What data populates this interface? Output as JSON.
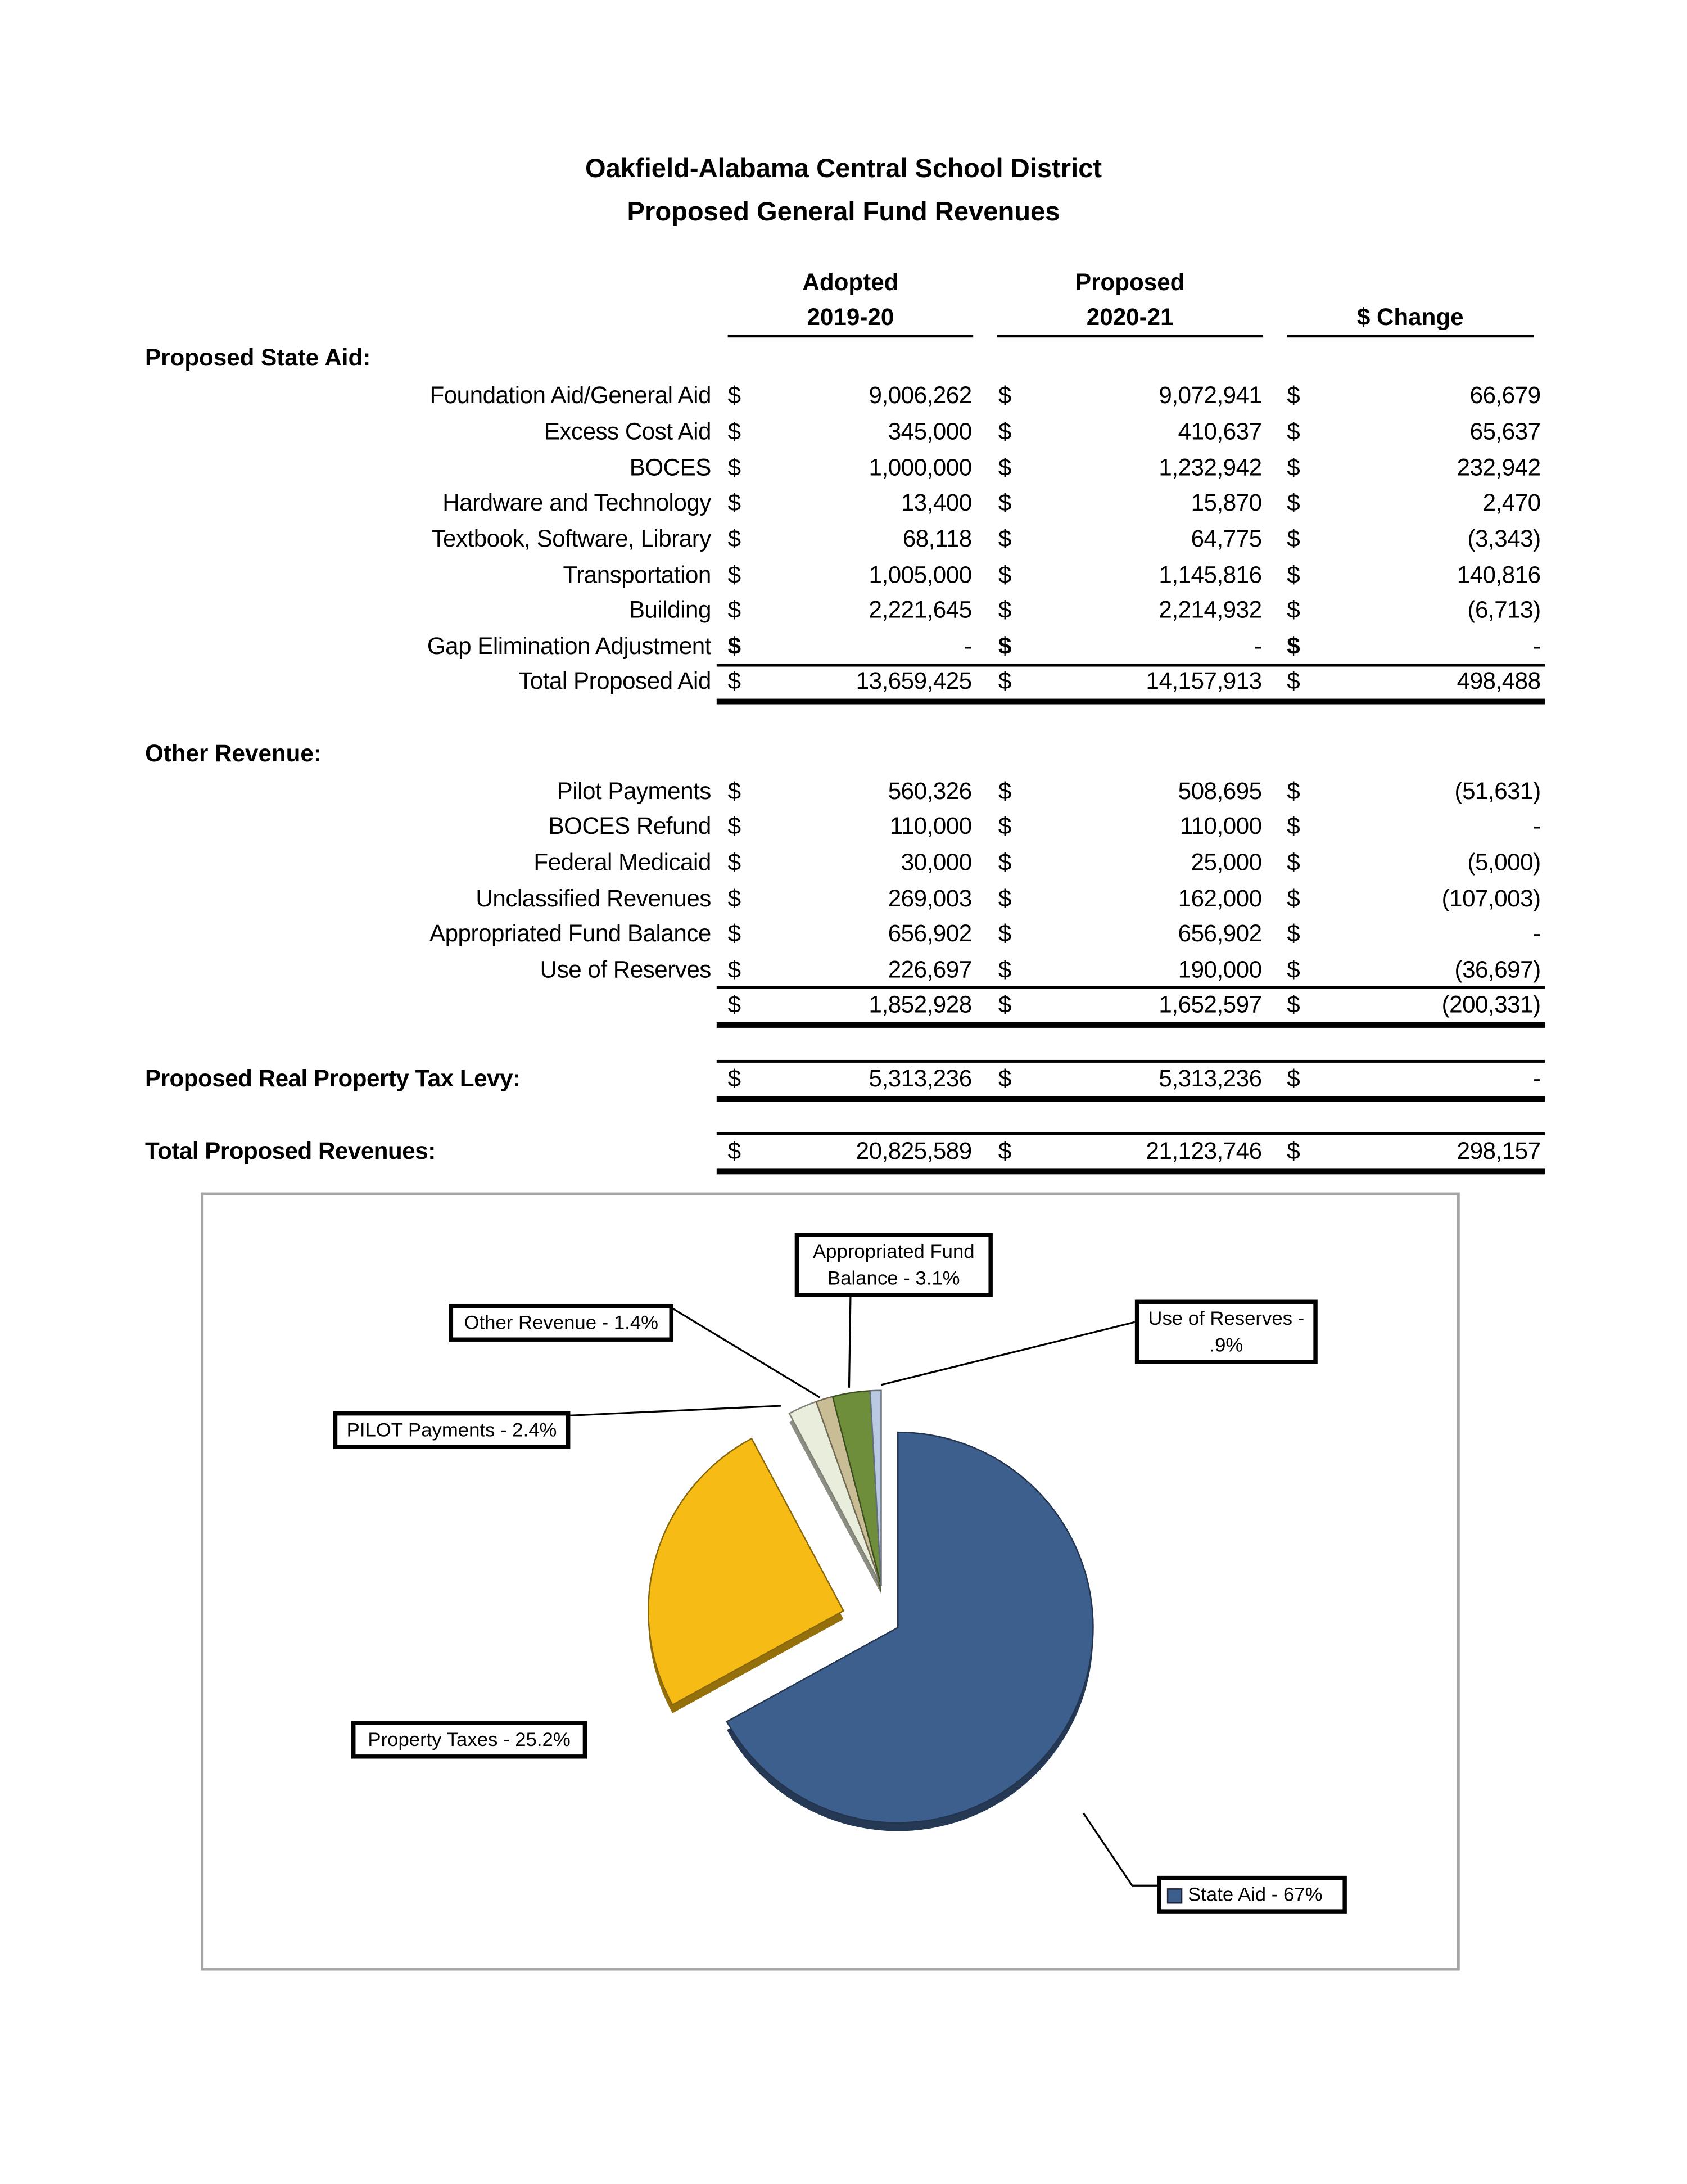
{
  "header": {
    "title_line1": "Oakfield-Alabama Central School District",
    "title_line2": "Proposed General Fund Revenues"
  },
  "columns": {
    "adopted_line1": "Adopted",
    "adopted_line2": "2019-20",
    "proposed_line1": "Proposed",
    "proposed_line2": "2020-21",
    "change": "$ Change"
  },
  "currency_symbol": "$",
  "state_aid": {
    "heading": "Proposed State Aid:",
    "rows": [
      {
        "label": "Foundation Aid/General Aid",
        "adopted": "9,006,262",
        "proposed": "9,072,941",
        "change": "66,679"
      },
      {
        "label": "Excess Cost Aid",
        "adopted": "345,000",
        "proposed": "410,637",
        "change": "65,637"
      },
      {
        "label": "BOCES",
        "adopted": "1,000,000",
        "proposed": "1,232,942",
        "change": "232,942"
      },
      {
        "label": "Hardware and Technology",
        "adopted": "13,400",
        "proposed": "15,870",
        "change": "2,470"
      },
      {
        "label": "Textbook, Software, Library",
        "adopted": "68,118",
        "proposed": "64,775",
        "change": "(3,343)"
      },
      {
        "label": "Transportation",
        "adopted": "1,005,000",
        "proposed": "1,145,816",
        "change": "140,816"
      },
      {
        "label": "Building",
        "adopted": "2,221,645",
        "proposed": "2,214,932",
        "change": "(6,713)"
      },
      {
        "label": "Gap Elimination Adjustment",
        "adopted": "-",
        "proposed": "-",
        "change": "-"
      }
    ],
    "total": {
      "label": "Total Proposed Aid",
      "adopted": "13,659,425",
      "proposed": "14,157,913",
      "change": "498,488"
    }
  },
  "other_revenue": {
    "heading": "Other Revenue:",
    "rows": [
      {
        "label": "Pilot Payments",
        "adopted": "560,326",
        "proposed": "508,695",
        "change": "(51,631)"
      },
      {
        "label": "BOCES Refund",
        "adopted": "110,000",
        "proposed": "110,000",
        "change": "-"
      },
      {
        "label": "Federal Medicaid",
        "adopted": "30,000",
        "proposed": "25,000",
        "change": "(5,000)"
      },
      {
        "label": "Unclassified Revenues",
        "adopted": "269,003",
        "proposed": "162,000",
        "change": "(107,003)"
      },
      {
        "label": "Appropriated Fund Balance",
        "adopted": "656,902",
        "proposed": "656,902",
        "change": "-"
      },
      {
        "label": "Use of Reserves",
        "adopted": "226,697",
        "proposed": "190,000",
        "change": "(36,697)"
      }
    ],
    "total": {
      "label": "",
      "adopted": "1,852,928",
      "proposed": "1,652,597",
      "change": "(200,331)"
    }
  },
  "tax_levy": {
    "label": "Proposed Real Property Tax Levy:",
    "adopted": "5,313,236",
    "proposed": "5,313,236",
    "change": "-"
  },
  "total_revenues": {
    "label": "Total Proposed Revenues:",
    "adopted": "20,825,589",
    "proposed": "21,123,746",
    "change": "298,157"
  },
  "chart_data": {
    "type": "pie",
    "title": "",
    "slices": [
      {
        "name": "State Aid",
        "value": 67,
        "label": "State Aid  - 67%",
        "color": "#3d5f8e"
      },
      {
        "name": "Property Taxes",
        "value": 25.2,
        "label": "Property Taxes - 25.2%",
        "color": "#f6bb14"
      },
      {
        "name": "PILOT Payments",
        "value": 2.4,
        "label": "PILOT Payments - 2.4%",
        "color": "#e9eddb"
      },
      {
        "name": "Other Revenue",
        "value": 1.4,
        "label": "Other Revenue - 1.4%",
        "color": "#c9bd95"
      },
      {
        "name": "Appropriated Fund Balance",
        "value": 3.1,
        "label_line1": "Appropriated Fund",
        "label_line2": "Balance - 3.1%",
        "color": "#6e8e3b"
      },
      {
        "name": "Use of Reserves",
        "value": 0.9,
        "label_line1": "Use of Reserves -",
        "label_line2": ".9%",
        "color": "#b9c9e1"
      }
    ]
  }
}
